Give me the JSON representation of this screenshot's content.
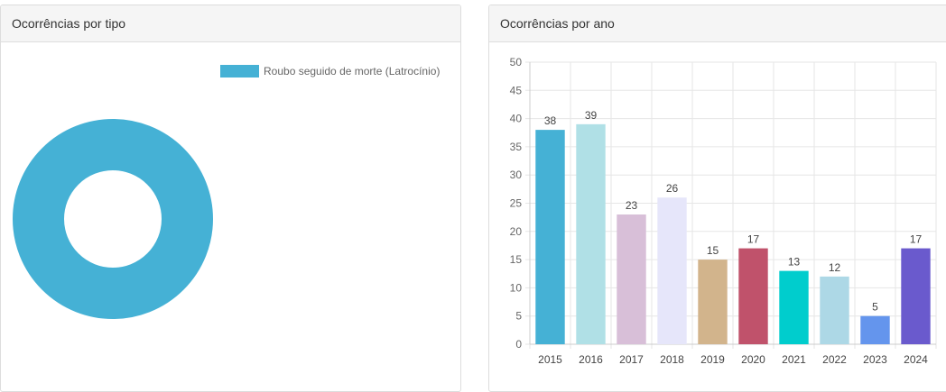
{
  "panels": {
    "by_type": {
      "title": "Ocorrências por tipo"
    },
    "by_year": {
      "title": "Ocorrências por ano"
    }
  },
  "chart_data": [
    {
      "type": "pie",
      "variant": "doughnut",
      "categories": [
        "Roubo seguido de morte (Latrocínio)"
      ],
      "values": [
        1
      ],
      "colors": [
        "#45b1d5"
      ],
      "legend_position": "top-right"
    },
    {
      "type": "bar",
      "categories": [
        "2015",
        "2016",
        "2017",
        "2018",
        "2019",
        "2020",
        "2021",
        "2022",
        "2023",
        "2024"
      ],
      "values": [
        38,
        39,
        23,
        26,
        15,
        17,
        13,
        12,
        5,
        17
      ],
      "colors": [
        "#45b1d5",
        "#b0e0e6",
        "#d8bfd8",
        "#e6e6fa",
        "#d2b48c",
        "#c0526b",
        "#00cdcd",
        "#add8e6",
        "#6495ed",
        "#6a5acd"
      ],
      "ylim": [
        0,
        50
      ],
      "yticks": [
        0,
        5,
        10,
        15,
        20,
        25,
        30,
        35,
        40,
        45,
        50
      ],
      "grid": true,
      "data_labels": true
    }
  ]
}
